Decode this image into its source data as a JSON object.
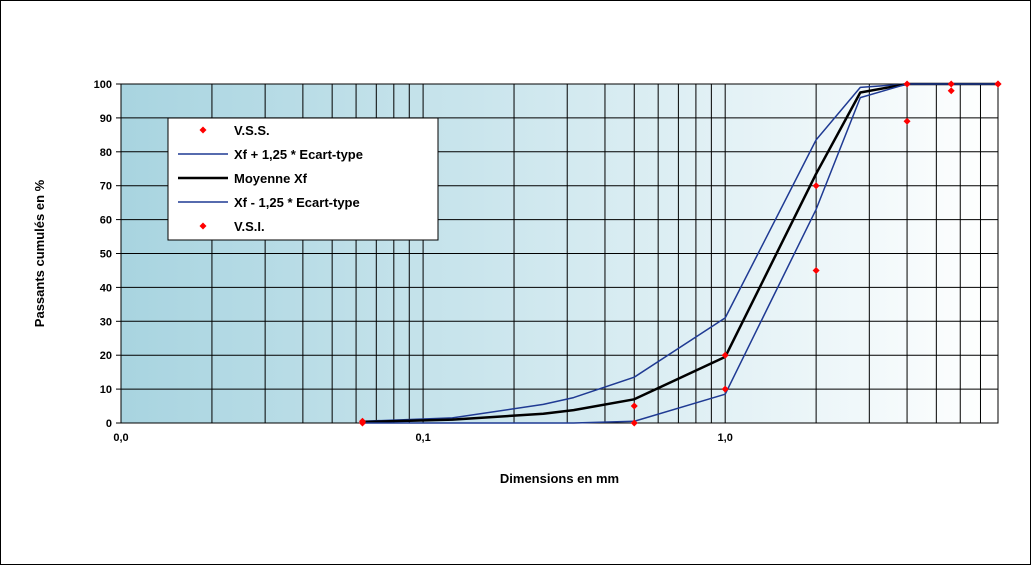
{
  "chart_data": {
    "type": "line",
    "xscale": "log",
    "xlim": [
      0.01,
      8
    ],
    "ylim": [
      0,
      100
    ],
    "xlabel": "Dimensions en mm",
    "ylabel": "Passants cumulés en %",
    "grid": true,
    "legend_position": "top-left",
    "x_tick_labels": [
      {
        "value": 0.01,
        "label": "0,0"
      },
      {
        "value": 0.1,
        "label": "0,1"
      },
      {
        "value": 1,
        "label": "1,0"
      }
    ],
    "y_ticks": [
      0,
      10,
      20,
      30,
      40,
      50,
      60,
      70,
      80,
      90,
      100
    ],
    "series": [
      {
        "name": "V.S.S.",
        "kind": "scatter",
        "color": "#ff0000",
        "points": [
          [
            0.063,
            0.5
          ],
          [
            0.5,
            5
          ],
          [
            1,
            20
          ],
          [
            2,
            70
          ],
          [
            4,
            100
          ],
          [
            5.6,
            100
          ],
          [
            8,
            100
          ]
        ]
      },
      {
        "name": "Xf + 1,25 * Ecart-type",
        "kind": "line",
        "color": "#1f3a93",
        "width": 1.5,
        "points": [
          [
            0.063,
            0.5
          ],
          [
            0.125,
            1.5
          ],
          [
            0.25,
            5.5
          ],
          [
            0.315,
            7.5
          ],
          [
            0.5,
            13.5
          ],
          [
            1,
            31
          ],
          [
            2,
            83.5
          ],
          [
            2.8,
            99
          ],
          [
            4,
            100
          ],
          [
            5.6,
            100
          ],
          [
            8,
            100
          ]
        ]
      },
      {
        "name": "Moyenne Xf",
        "kind": "line",
        "color": "#000000",
        "width": 2.5,
        "points": [
          [
            0.063,
            0.3
          ],
          [
            0.125,
            1
          ],
          [
            0.25,
            2.7
          ],
          [
            0.315,
            3.8
          ],
          [
            0.5,
            7
          ],
          [
            1,
            19.5
          ],
          [
            2,
            73.5
          ],
          [
            2.8,
            97.5
          ],
          [
            4,
            100
          ],
          [
            5.6,
            100
          ],
          [
            8,
            100
          ]
        ]
      },
      {
        "name": "Xf - 1,25 * Ecart-type",
        "kind": "line",
        "color": "#1f3a93",
        "width": 1.5,
        "points": [
          [
            0.063,
            0
          ],
          [
            0.125,
            0
          ],
          [
            0.25,
            0
          ],
          [
            0.315,
            0
          ],
          [
            0.5,
            0.5
          ],
          [
            1,
            8.5
          ],
          [
            2,
            63
          ],
          [
            2.8,
            96
          ],
          [
            4,
            100
          ],
          [
            5.6,
            100
          ],
          [
            8,
            100
          ]
        ]
      },
      {
        "name": "V.S.I.",
        "kind": "scatter",
        "color": "#ff0000",
        "points": [
          [
            0.063,
            0
          ],
          [
            0.5,
            0
          ],
          [
            1,
            10
          ],
          [
            2,
            45
          ],
          [
            4,
            89
          ],
          [
            5.6,
            98
          ],
          [
            8,
            100
          ]
        ]
      }
    ]
  }
}
